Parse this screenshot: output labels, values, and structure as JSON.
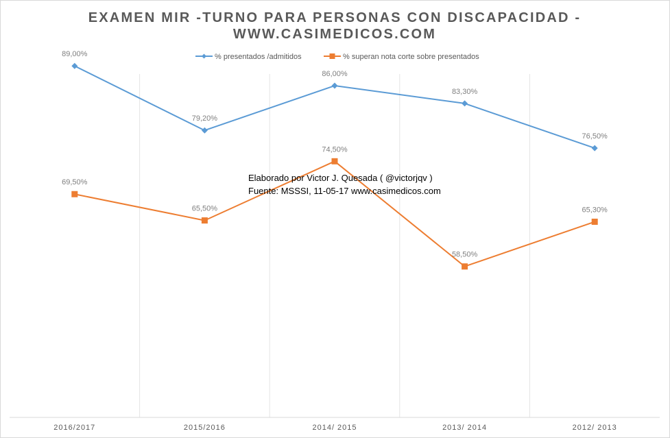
{
  "chart_data": {
    "type": "line",
    "title": "EXAMEN MIR -TURNO PARA PERSONAS CON DISCAPACIDAD -",
    "subtitle": "WWW.CASIMEDICOS.COM",
    "categories": [
      "2016/2017",
      "2015/2016",
      "2014/ 2015",
      "2013/ 2014",
      "2012/ 2013"
    ],
    "series": [
      {
        "name": "% presentados /admitidos",
        "color": "#5b9bd5",
        "marker": "diamond",
        "values": [
          89.0,
          79.2,
          86.0,
          83.3,
          76.5
        ],
        "labels": [
          "89,00%",
          "79,20%",
          "86,00%",
          "83,30%",
          "76,50%"
        ]
      },
      {
        "name": "% superan nota corte sobre presentados",
        "color": "#ed7d31",
        "marker": "square",
        "values": [
          69.5,
          65.5,
          74.5,
          58.5,
          65.3
        ],
        "labels": [
          "69,50%",
          "65,50%",
          "74,50%",
          "58,50%",
          "65,30%"
        ]
      }
    ],
    "annotation": [
      "Elaborado por Victor J. Quesada ( @victorjqv )",
      "Fuente: MSSSI, 11-05-17 www.casimedicos.com"
    ],
    "legend_position": "top",
    "grid": "vertical"
  }
}
